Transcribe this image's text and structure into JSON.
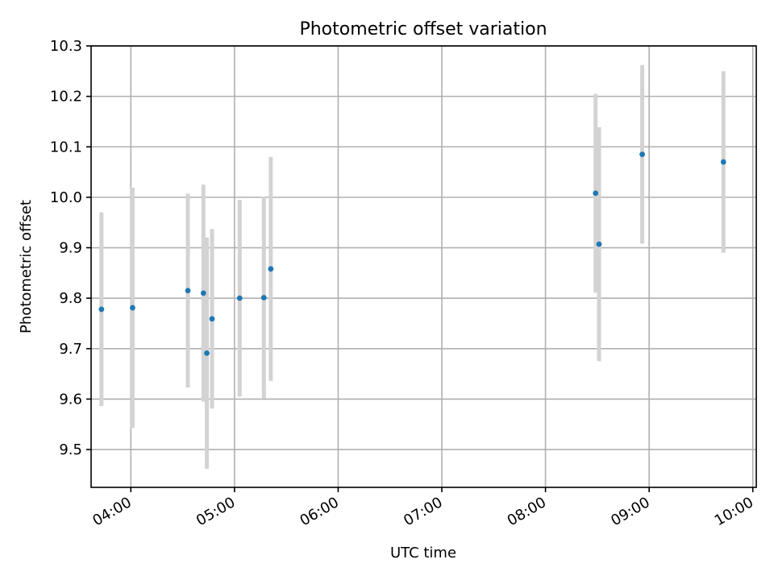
{
  "chart_data": {
    "type": "scatter",
    "title": "Photometric offset variation",
    "xlabel": "UTC time",
    "ylabel": "Photometric offset",
    "x_is_time": true,
    "xlim": [
      "03:37",
      "10:02"
    ],
    "ylim": [
      9.425,
      10.3
    ],
    "x_ticks": [
      "04:00",
      "05:00",
      "06:00",
      "07:00",
      "08:00",
      "09:00",
      "10:00"
    ],
    "y_ticks": [
      "9.5",
      "9.6",
      "9.7",
      "9.8",
      "9.9",
      "10.0",
      "10.1",
      "10.2",
      "10.3"
    ],
    "grid": true,
    "error_bar_color": "#d3d3d3",
    "marker_color": "#1f77b4",
    "series": [
      {
        "points": [
          {
            "t": "03:43",
            "y": 9.778,
            "err": 0.192
          },
          {
            "t": "04:01",
            "y": 9.781,
            "err": 0.238
          },
          {
            "t": "04:33",
            "y": 9.815,
            "err": 0.192
          },
          {
            "t": "04:42",
            "y": 9.81,
            "err": 0.215
          },
          {
            "t": "04:44",
            "y": 9.691,
            "err": 0.229
          },
          {
            "t": "04:47",
            "y": 9.759,
            "err": 0.178
          },
          {
            "t": "05:03",
            "y": 9.8,
            "err": 0.195
          },
          {
            "t": "05:17",
            "y": 9.801,
            "err": 0.2
          },
          {
            "t": "05:21",
            "y": 9.858,
            "err": 0.222
          },
          {
            "t": "08:29",
            "y": 10.008,
            "err": 0.197
          },
          {
            "t": "08:31",
            "y": 9.907,
            "err": 0.232
          },
          {
            "t": "08:56",
            "y": 10.085,
            "err": 0.177
          },
          {
            "t": "09:43",
            "y": 10.07,
            "err": 0.18
          }
        ]
      }
    ]
  }
}
